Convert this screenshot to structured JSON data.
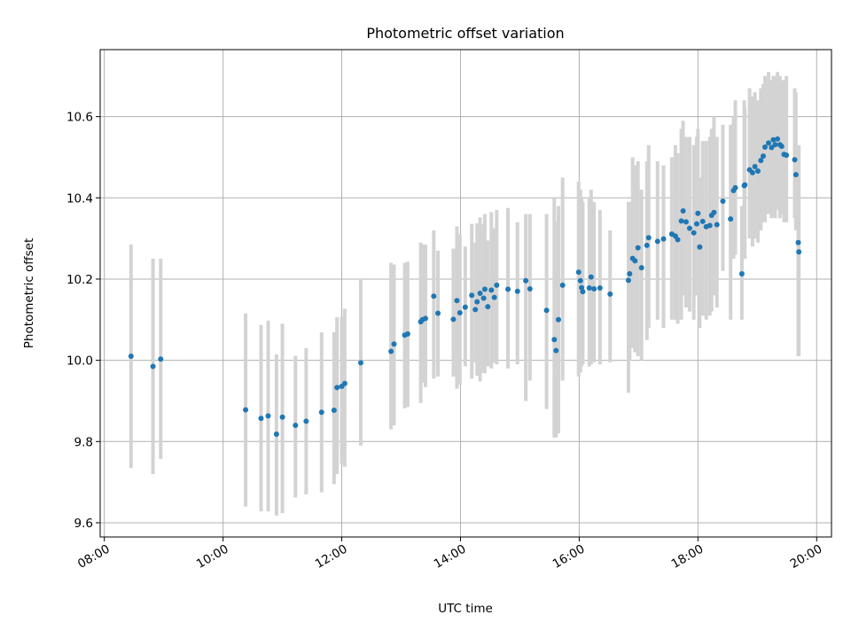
{
  "chart_data": {
    "type": "scatter",
    "title": "Photometric offset variation",
    "xlabel": "UTC time",
    "ylabel": "Photometric offset",
    "x_unit": "hours (UTC)",
    "xlim": [
      7.93,
      20.25
    ],
    "ylim": [
      9.565,
      10.765
    ],
    "x_ticks": [
      8,
      10,
      12,
      14,
      16,
      18,
      20
    ],
    "x_tick_labels": [
      "08:00",
      "10:00",
      "12:00",
      "14:00",
      "16:00",
      "18:00",
      "20:00"
    ],
    "y_ticks": [
      9.6,
      9.8,
      10.0,
      10.2,
      10.4,
      10.6
    ],
    "y_tick_labels": [
      "9.6",
      "9.8",
      "10.0",
      "10.2",
      "10.4",
      "10.6"
    ],
    "grid": true,
    "colors": {
      "points": "#1f77b4",
      "errorbars": "#d3d3d3",
      "grid": "#b0b0b0"
    },
    "series": [
      {
        "kind": "points_with_errorbars",
        "x": [
          8.45,
          8.82,
          8.95,
          10.38,
          10.64,
          10.76,
          10.9,
          11.0,
          11.22,
          11.4,
          11.66,
          11.87,
          11.92,
          12.0,
          12.05,
          12.32,
          12.83,
          12.88,
          13.06,
          13.11,
          13.33,
          13.36,
          13.41,
          13.55,
          13.62,
          13.88,
          13.94,
          13.99,
          14.08,
          14.19,
          14.25,
          14.28,
          14.33,
          14.39,
          14.41,
          14.46,
          14.52,
          14.57,
          14.61,
          14.8,
          14.96,
          15.1,
          15.17,
          15.45,
          15.58,
          15.61,
          15.65,
          15.72,
          15.99,
          16.02,
          16.04,
          16.06,
          16.17,
          16.2,
          16.25,
          16.35,
          16.52,
          16.83,
          16.85,
          16.9,
          16.94,
          16.99,
          17.05,
          17.14,
          17.17,
          17.32,
          17.42,
          17.56,
          17.62,
          17.66,
          17.72,
          17.75,
          17.8,
          17.86,
          17.93,
          17.98,
          18.0,
          18.03,
          18.08,
          18.14,
          18.2,
          18.23,
          18.27,
          18.32,
          18.42,
          18.55,
          18.6,
          18.63,
          18.74,
          18.78,
          18.79,
          18.87,
          18.92,
          18.96,
          19.01,
          19.06,
          19.1,
          19.13,
          19.19,
          19.24,
          19.27,
          19.3,
          19.34,
          19.38,
          19.41,
          19.45,
          19.49,
          19.63,
          19.65,
          19.69,
          19.7
        ],
        "y": [
          10.01,
          9.985,
          10.003,
          9.878,
          9.857,
          9.863,
          9.818,
          9.86,
          9.84,
          9.85,
          9.872,
          9.877,
          9.933,
          9.936,
          9.943,
          9.994,
          10.022,
          10.04,
          10.062,
          10.065,
          10.095,
          10.1,
          10.103,
          10.158,
          10.116,
          10.101,
          10.147,
          10.117,
          10.131,
          10.16,
          10.125,
          10.144,
          10.165,
          10.153,
          10.175,
          10.132,
          10.173,
          10.155,
          10.185,
          10.175,
          10.17,
          10.196,
          10.176,
          10.123,
          10.051,
          10.024,
          10.1,
          10.185,
          10.217,
          10.196,
          10.179,
          10.169,
          10.178,
          10.205,
          10.176,
          10.178,
          10.163,
          10.197,
          10.213,
          10.251,
          10.245,
          10.277,
          10.228,
          10.283,
          10.302,
          10.293,
          10.299,
          10.311,
          10.306,
          10.297,
          10.343,
          10.368,
          10.341,
          10.325,
          10.314,
          10.336,
          10.362,
          10.279,
          10.342,
          10.329,
          10.332,
          10.357,
          10.364,
          10.334,
          10.392,
          10.348,
          10.418,
          10.425,
          10.213,
          10.43,
          10.432,
          10.469,
          10.462,
          10.477,
          10.466,
          10.492,
          10.503,
          10.525,
          10.535,
          10.524,
          10.543,
          10.531,
          10.545,
          10.531,
          10.527,
          10.507,
          10.505,
          10.494,
          10.457,
          10.29,
          10.267
        ],
        "error_low": [
          9.735,
          9.72,
          9.757,
          9.64,
          9.628,
          9.628,
          9.618,
          9.624,
          9.662,
          9.67,
          9.675,
          9.695,
          9.72,
          9.745,
          9.738,
          9.79,
          9.83,
          9.84,
          9.882,
          9.885,
          9.895,
          9.945,
          9.934,
          9.955,
          9.96,
          9.96,
          9.93,
          9.94,
          9.985,
          9.955,
          9.995,
          9.962,
          9.948,
          9.97,
          9.968,
          9.985,
          9.98,
          9.994,
          9.99,
          9.98,
          9.99,
          9.9,
          9.95,
          9.88,
          9.81,
          9.81,
          9.82,
          9.95,
          9.96,
          9.97,
          9.985,
          9.99,
          9.985,
          9.99,
          9.995,
          9.99,
          9.995,
          9.92,
          10.0,
          10.03,
          10.02,
          10.01,
          10.0,
          10.05,
          10.08,
          10.1,
          10.08,
          10.1,
          10.1,
          10.09,
          10.1,
          10.16,
          10.13,
          10.12,
          10.1,
          10.16,
          10.18,
          10.08,
          10.11,
          10.1,
          10.11,
          10.12,
          10.16,
          10.13,
          10.22,
          10.1,
          10.25,
          10.26,
          10.1,
          10.27,
          10.25,
          10.3,
          10.28,
          10.3,
          10.29,
          10.32,
          10.34,
          10.34,
          10.36,
          10.35,
          10.37,
          10.35,
          10.37,
          10.35,
          10.36,
          10.34,
          10.34,
          10.35,
          10.32,
          10.01,
          10.01
        ],
        "error_high": [
          10.285,
          10.25,
          10.25,
          10.115,
          10.087,
          10.098,
          10.015,
          10.09,
          10.011,
          10.03,
          10.069,
          10.069,
          10.106,
          10.108,
          10.127,
          10.2,
          10.24,
          10.236,
          10.24,
          10.243,
          10.29,
          10.285,
          10.285,
          10.32,
          10.27,
          10.275,
          10.33,
          10.31,
          10.28,
          10.336,
          10.29,
          10.337,
          10.352,
          10.335,
          10.36,
          10.295,
          10.365,
          10.325,
          10.37,
          10.375,
          10.34,
          10.36,
          10.36,
          10.36,
          10.4,
          10.34,
          10.38,
          10.45,
          10.44,
          10.42,
          10.4,
          10.39,
          10.4,
          10.42,
          10.39,
          10.37,
          10.32,
          10.39,
          10.39,
          10.5,
          10.48,
          10.49,
          10.42,
          10.49,
          10.53,
          10.49,
          10.48,
          10.5,
          10.53,
          10.51,
          10.57,
          10.59,
          10.55,
          10.55,
          10.53,
          10.55,
          10.57,
          10.45,
          10.54,
          10.54,
          10.55,
          10.57,
          10.6,
          10.55,
          10.58,
          10.58,
          10.6,
          10.64,
          10.38,
          10.64,
          10.62,
          10.67,
          10.65,
          10.66,
          10.64,
          10.67,
          10.68,
          10.7,
          10.71,
          10.69,
          10.7,
          10.7,
          10.71,
          10.7,
          10.69,
          10.69,
          10.7,
          10.67,
          10.66,
          10.52,
          10.53
        ]
      }
    ]
  }
}
